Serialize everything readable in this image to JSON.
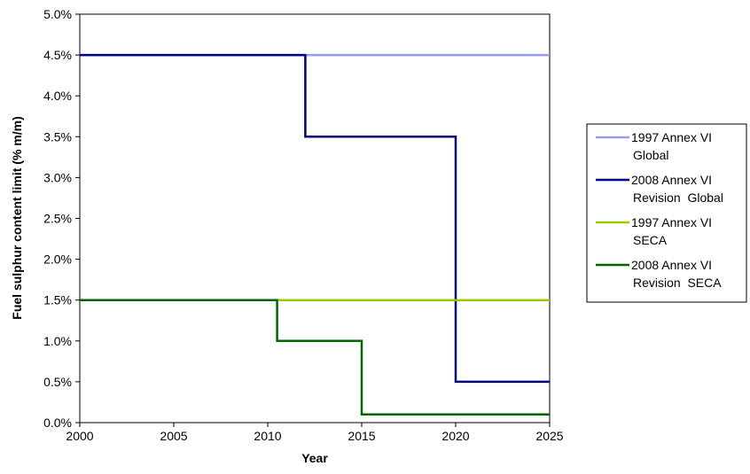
{
  "chart_data": {
    "type": "line",
    "step": true,
    "xlabel": "Year",
    "ylabel": "Fuel sulphur content limit (% m/m)",
    "xlim": [
      2000,
      2025
    ],
    "ylim": [
      0,
      5
    ],
    "x_ticks": [
      "2000",
      "2005",
      "2010",
      "2015",
      "2020",
      "2025"
    ],
    "y_ticks": [
      "0.0%",
      "0.5%",
      "1.0%",
      "1.5%",
      "2.0%",
      "2.5%",
      "3.0%",
      "3.5%",
      "4.0%",
      "4.5%",
      "5.0%"
    ],
    "grid": false,
    "legend_position": "right",
    "series": [
      {
        "name_lines": [
          "1997 Annex VI",
          "Global"
        ],
        "color": "#9999ee",
        "x": [
          2000,
          2025
        ],
        "y": [
          4.5,
          4.5
        ]
      },
      {
        "name_lines": [
          "2008 Annex VI",
          "Revision  Global"
        ],
        "color": "#000080",
        "x": [
          2000,
          2012,
          2012,
          2020,
          2020,
          2025
        ],
        "y": [
          4.5,
          4.5,
          3.5,
          3.5,
          0.5,
          0.5
        ]
      },
      {
        "name_lines": [
          "1997 Annex VI",
          "SECA"
        ],
        "color": "#99cc00",
        "x": [
          2000,
          2025
        ],
        "y": [
          1.5,
          1.5
        ]
      },
      {
        "name_lines": [
          "2008 Annex VI",
          "Revision  SECA"
        ],
        "color": "#006600",
        "x": [
          2000,
          2010.5,
          2010.5,
          2015,
          2015,
          2025
        ],
        "y": [
          1.5,
          1.5,
          1.0,
          1.0,
          0.1,
          0.1
        ]
      }
    ]
  }
}
